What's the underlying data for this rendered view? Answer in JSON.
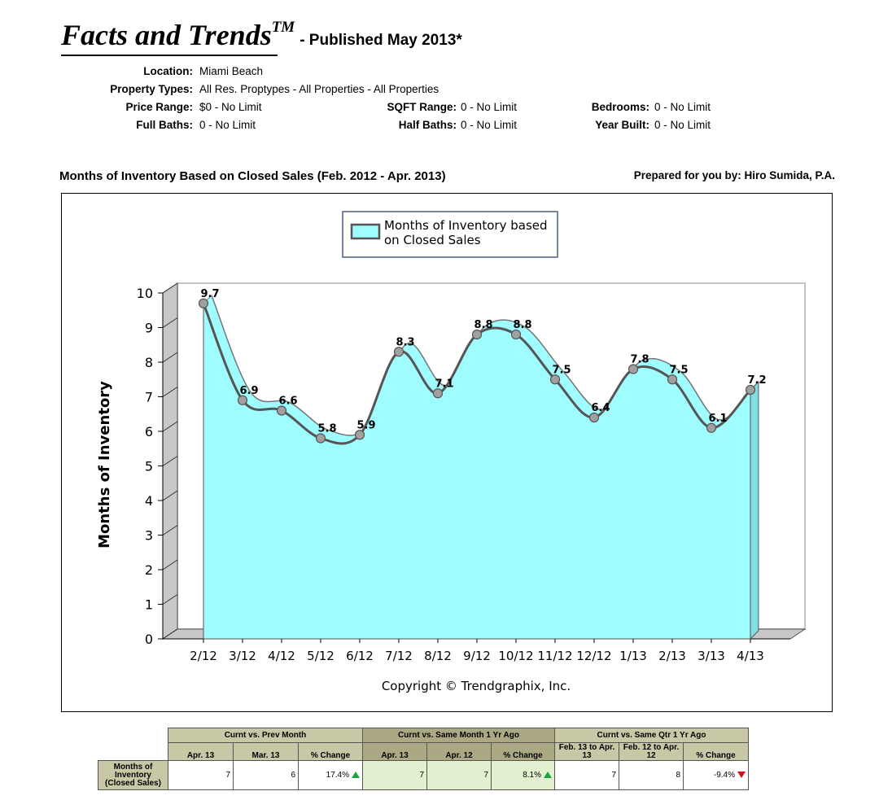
{
  "header": {
    "brand": "Facts and Trends",
    "trademark": "TM",
    "published": "- Published May 2013*"
  },
  "filters": [
    {
      "label": "Location:",
      "value": "Miami Beach"
    },
    {
      "label": "Property Types:",
      "value": "All Res. Proptypes - All Properties - All Properties"
    },
    {
      "label": "Price Range:",
      "value": "$0 - No Limit"
    },
    {
      "label": "SQFT Range:",
      "value": "0 - No Limit"
    },
    {
      "label": "Bedrooms:",
      "value": "0 - No Limit"
    },
    {
      "label": "Full Baths:",
      "value": "0 - No Limit"
    },
    {
      "label": "Half Baths:",
      "value": "0 - No Limit"
    },
    {
      "label": "Year Built:",
      "value": "0 - No Limit"
    }
  ],
  "chart_title": "Months of Inventory Based on Closed Sales (Feb. 2012 - Apr. 2013)",
  "prepared_by": "Prepared for you by: Hiro Sumida, P.A.",
  "chart_data": {
    "type": "area",
    "categories": [
      "2/12",
      "3/12",
      "4/12",
      "5/12",
      "6/12",
      "7/12",
      "8/12",
      "9/12",
      "10/12",
      "11/12",
      "12/12",
      "1/13",
      "2/13",
      "3/13",
      "4/13"
    ],
    "series": [
      {
        "name": "Months of Inventory based on Closed Sales",
        "values": [
          9.7,
          6.9,
          6.6,
          5.8,
          5.9,
          8.3,
          7.1,
          8.8,
          8.8,
          7.5,
          6.4,
          7.8,
          7.5,
          6.1,
          7.2
        ]
      }
    ],
    "legend_lines": [
      "Months of Inventory based",
      "on Closed Sales"
    ],
    "ylabel": "Months of Inventory",
    "ylim": [
      0,
      10
    ],
    "yticks": [
      "0",
      "1",
      "2",
      "3",
      "4",
      "5",
      "6",
      "7",
      "8",
      "9",
      "10"
    ],
    "legend_position": "top-center",
    "fill_color": "#9ffcff",
    "line_color": "#555555",
    "footer": "Copyright © Trendgraphix, Inc."
  },
  "summary": {
    "groups": [
      "Curnt vs. Prev Month",
      "Curnt vs. Same Month 1 Yr Ago",
      "Curnt vs. Same Qtr 1 Yr Ago"
    ],
    "columns": [
      "Apr. 13",
      "Mar. 13",
      "% Change",
      "Apr. 13",
      "Apr. 12",
      "% Change",
      "Feb. 13 to Apr. 13",
      "Feb. 12 to Apr. 12",
      "% Change"
    ],
    "row_label": "Months of Inventory (Closed Sales)",
    "values": [
      "7",
      "6",
      "17.4%",
      "7",
      "7",
      "8.1%",
      "7",
      "8",
      "-9.4%"
    ],
    "trend_colors": {
      "up": "#18a43c",
      "down": "#d0101a"
    }
  }
}
